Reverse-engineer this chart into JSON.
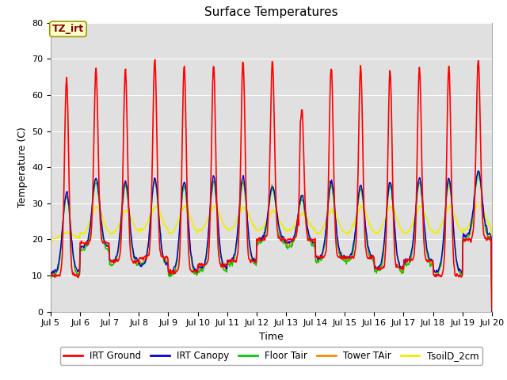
{
  "title": "Surface Temperatures",
  "xlabel": "Time",
  "ylabel": "Temperature (C)",
  "ylim": [
    0,
    80
  ],
  "bg_color": "#e0e0e0",
  "fig_color": "#ffffff",
  "annotation_text": "TZ_irt",
  "annotation_color": "#880000",
  "annotation_bg": "#ffffcc",
  "annotation_border": "#999900",
  "legend_entries": [
    "IRT Ground",
    "IRT Canopy",
    "Floor Tair",
    "Tower TAir",
    "TsoilD_2cm"
  ],
  "line_colors": [
    "#ff0000",
    "#0000dd",
    "#00cc00",
    "#ff8800",
    "#eeee00"
  ],
  "line_widths": [
    1.2,
    1.0,
    1.0,
    1.0,
    1.2
  ],
  "grid_color": "#ffffff",
  "tick_label_fontsize": 8,
  "title_fontsize": 11
}
